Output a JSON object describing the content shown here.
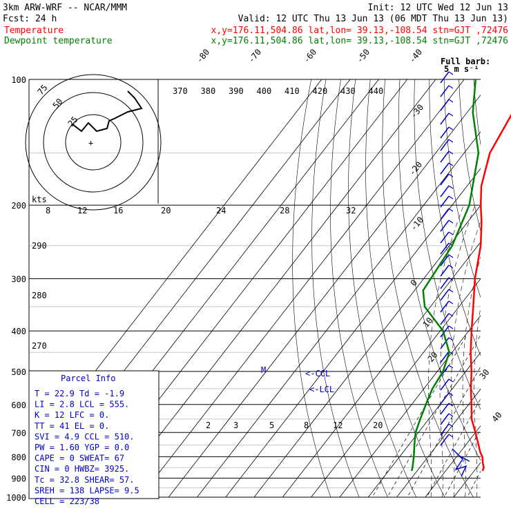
{
  "header": {
    "line1_left": "3km ARW-WRF -- NCAR/MMM",
    "line1_right": "Init: 12 UTC Wed 12 Jun 13",
    "line2_left": "Fcst:   24 h",
    "line2_right": "Valid: 12 UTC Thu 13 Jun 13 (06 MDT Thu 13 Jun 13)",
    "line3_left": "Temperature",
    "line3_right": "x,y=176.11,504.86   lat,lon= 39.13,-108.54  stn=GJT ,72476",
    "line4_left": "Dewpoint temperature",
    "line4_right": "x,y=176.11,504.86   lat,lon= 39.13,-108.54  stn=GJT ,72476"
  },
  "colors": {
    "temperature": "#ff0000",
    "dewpoint": "#008000",
    "grid": "#000000",
    "light_lines": "#c8c8c8",
    "wind_barb": "#0000c8",
    "parcel_text": "#0000c8"
  },
  "chart_data": {
    "type": "skew-t log-p",
    "pressure_labels": [
      "100",
      "200",
      "300",
      "400",
      "500",
      "600",
      "700",
      "800",
      "900",
      "1000"
    ],
    "isotherm_labels": [
      "-80",
      "-70",
      "-60",
      "-50",
      "-40",
      "-30",
      "-20",
      "-10",
      "0",
      "10",
      "20",
      "30",
      "40"
    ],
    "theta_labels": [
      "370",
      "380",
      "390",
      "400",
      "410",
      "420",
      "430",
      "440"
    ],
    "theta_side_labels": [
      "290",
      "280",
      "270"
    ],
    "mixing_ratio_labels": [
      "2",
      "3",
      "5",
      "8",
      "12",
      "20"
    ],
    "hodo_speed_labels": [
      "8",
      "12",
      "16",
      "20",
      "24",
      "28",
      "32"
    ],
    "hodo_ring_labels": [
      "75",
      "50",
      "25"
    ],
    "hodo_units": "kts",
    "barb_legend": [
      "Full barb:",
      "5 m s⁻¹"
    ],
    "lcl_labels": [
      "<-CCL",
      "<-LCL"
    ],
    "marker": "M",
    "temperature_series": {
      "name": "Temperature",
      "points": [
        [
          865,
          22.9
        ],
        [
          850,
          22.5
        ],
        [
          830,
          21
        ],
        [
          800,
          19
        ],
        [
          780,
          17
        ],
        [
          750,
          14.5
        ],
        [
          700,
          10
        ],
        [
          650,
          5
        ],
        [
          600,
          1
        ],
        [
          550,
          -3.5
        ],
        [
          500,
          -8
        ],
        [
          450,
          -13.5
        ],
        [
          400,
          -19
        ],
        [
          350,
          -25
        ],
        [
          300,
          -32
        ],
        [
          250,
          -39
        ],
        [
          220,
          -45
        ],
        [
          200,
          -50
        ],
        [
          180,
          -55
        ],
        [
          150,
          -61
        ],
        [
          120,
          -64
        ],
        [
          100,
          -65
        ]
      ]
    },
    "dewpoint_series": {
      "name": "Dewpoint temperature",
      "points": [
        [
          865,
          -1.9
        ],
        [
          850,
          -2.5
        ],
        [
          800,
          -5
        ],
        [
          750,
          -8
        ],
        [
          700,
          -11
        ],
        [
          650,
          -13
        ],
        [
          600,
          -15
        ],
        [
          550,
          -17
        ],
        [
          500,
          -18
        ],
        [
          450,
          -21
        ],
        [
          400,
          -29
        ],
        [
          350,
          -42
        ],
        [
          320,
          -47
        ],
        [
          250,
          -49
        ],
        [
          200,
          -54
        ],
        [
          150,
          -65
        ],
        [
          120,
          -78
        ],
        [
          100,
          -86
        ]
      ]
    }
  },
  "parcel": {
    "title": "Parcel Info",
    "rows": [
      "T   =  22.9  Td  =  -1.9",
      "LI  =   2.8  LCL =  555.",
      "K   =    12  LFC =    0.",
      "TT  =    41  EL  =    0.",
      "SVI =   4.9  CCL =  510.",
      "PW  =  1.60  YGP =   0.0",
      "CAPE =    0  SWEAT=   67",
      "CIN  =    0  HWBZ= 3925.",
      "Tc  =  32.8  SHEAR=  57.",
      "SREH =  138  LAPSE=  9.5",
      "CELL = 223/38"
    ]
  }
}
